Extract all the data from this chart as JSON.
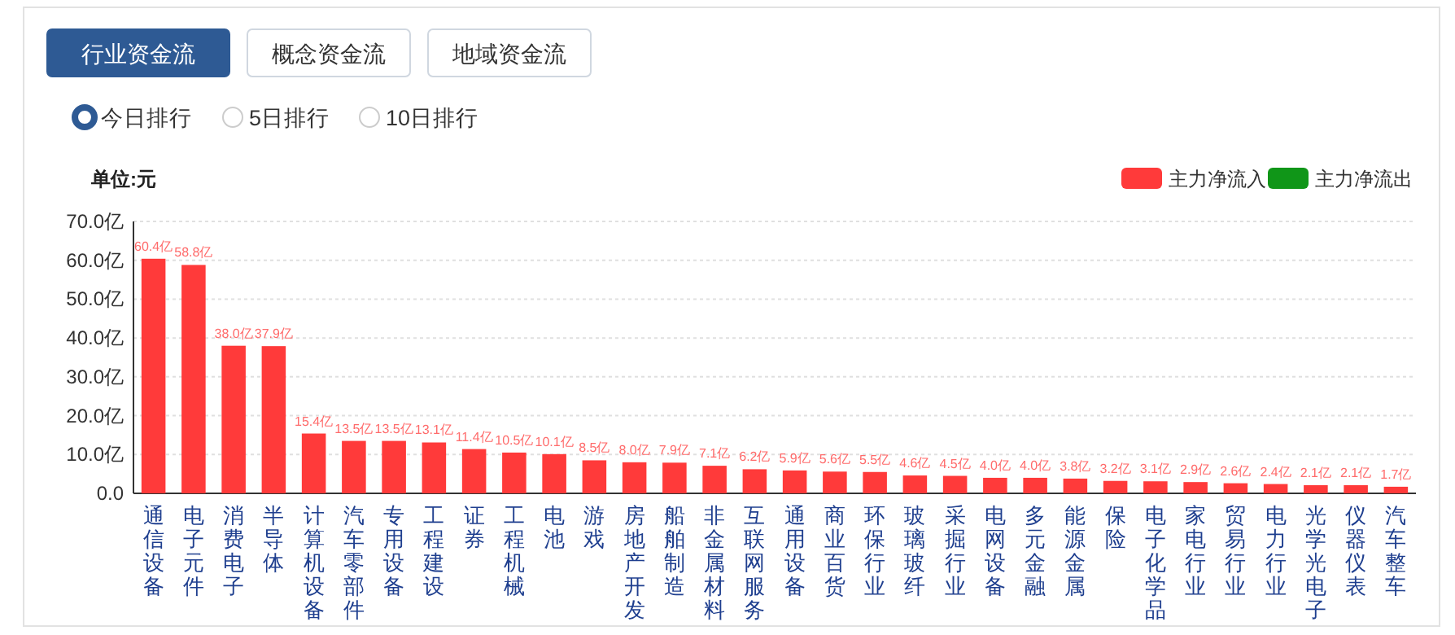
{
  "chart_data": {
    "type": "bar",
    "ylabel": "单位:元",
    "annotations": [
      "行业资金流",
      "概念资金流",
      "地域资金流",
      "今日排行",
      "5日排行",
      "10日排行"
    ],
    "categories": [
      "通信设备",
      "电子元件",
      "消费电子",
      "半导体",
      "计算机设备",
      "汽车零部件",
      "专用设备",
      "工程建设",
      "证券",
      "工程机械",
      "电池",
      "游戏",
      "房地产开发",
      "船舶制造",
      "非金属材料",
      "互联网服务",
      "通用设备",
      "商业百货",
      "环保行业",
      "玻璃玻纤",
      "采掘行业",
      "电网设备",
      "多元金融",
      "能源金属",
      "保险",
      "电子化学品",
      "家电行业",
      "贸易行业",
      "电力行业",
      "光学光电子",
      "仪器仪表",
      "汽车整车"
    ],
    "series": [
      {
        "name": "主力净流入",
        "color": "#ff3a3a",
        "values": [
          60.4,
          58.8,
          38.0,
          37.9,
          15.4,
          13.5,
          13.5,
          13.1,
          11.4,
          10.5,
          10.1,
          8.5,
          8.0,
          7.9,
          7.1,
          6.2,
          5.9,
          5.6,
          5.5,
          4.6,
          4.5,
          4.0,
          4.0,
          3.8,
          3.2,
          3.1,
          2.9,
          2.6,
          2.4,
          2.1,
          2.1,
          1.7
        ],
        "value_labels": [
          "60.4亿",
          "58.8亿",
          "38.0亿",
          "37.9亿",
          "15.4亿",
          "13.5亿",
          "13.5亿",
          "13.1亿",
          "11.4亿",
          "10.5亿",
          "10.1亿",
          "8.5亿",
          "8.0亿",
          "7.9亿",
          "7.1亿",
          "6.2亿",
          "5.9亿",
          "5.6亿",
          "5.5亿",
          "4.6亿",
          "4.5亿",
          "4.0亿",
          "4.0亿",
          "3.8亿",
          "3.2亿",
          "3.1亿",
          "2.9亿",
          "2.6亿",
          "2.4亿",
          "2.1亿",
          "2.1亿",
          "1.7亿"
        ]
      },
      {
        "name": "主力净流出",
        "color": "#109618",
        "values": [
          null,
          null,
          null,
          null,
          null,
          null,
          null,
          null,
          null,
          null,
          null,
          null,
          null,
          null,
          null,
          null,
          null,
          null,
          null,
          null,
          null,
          null,
          null,
          null,
          null,
          null,
          null,
          null,
          null,
          null,
          null,
          null
        ]
      }
    ],
    "ylim": [
      0,
      70
    ],
    "yticks": [
      {
        "value": 0,
        "label": "0.0"
      },
      {
        "value": 10,
        "label": "10.0亿"
      },
      {
        "value": 20,
        "label": "20.0亿"
      },
      {
        "value": 30,
        "label": "30.0亿"
      },
      {
        "value": 40,
        "label": "40.0亿"
      },
      {
        "value": 50,
        "label": "50.0亿"
      },
      {
        "value": 60,
        "label": "60.0亿"
      },
      {
        "value": 70,
        "label": "70.0亿"
      }
    ],
    "grid": "y",
    "legend": "top right"
  }
}
